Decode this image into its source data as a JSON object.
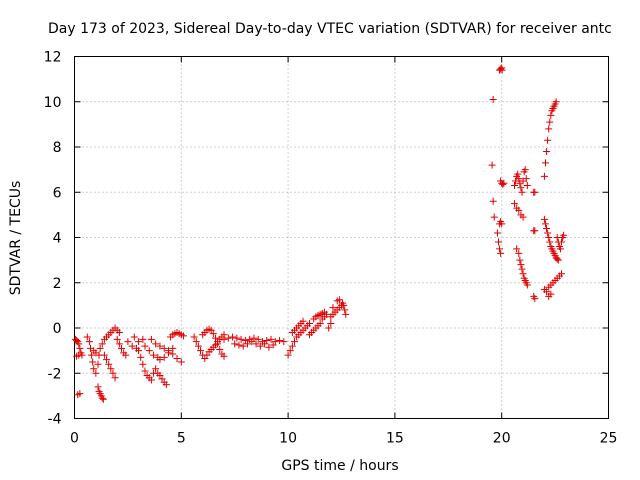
{
  "chart_data": {
    "type": "scatter",
    "title": "Day 173 of 2023, Sidereal Day-to-day VTEC variation (SDTVAR) for receiver antc",
    "xlabel": "GPS time / hours",
    "ylabel": "SDTVAR / TECUs",
    "xlim": [
      0,
      25
    ],
    "ylim": [
      -4,
      12
    ],
    "xticks": [
      0,
      5,
      10,
      15,
      20,
      25
    ],
    "yticks": [
      -4,
      -2,
      0,
      2,
      4,
      6,
      8,
      10,
      12
    ],
    "grid": true,
    "marker": "+",
    "color": "#ff0000",
    "series": [
      {
        "name": "SDTVAR",
        "points": [
          [
            0.05,
            -0.5
          ],
          [
            0.1,
            -0.55
          ],
          [
            0.15,
            -0.6
          ],
          [
            0.2,
            -0.7
          ],
          [
            0.25,
            -0.9
          ],
          [
            0.3,
            -1.1
          ],
          [
            0.35,
            -1.2
          ],
          [
            0.2,
            -1.2
          ],
          [
            0.1,
            -1.25
          ],
          [
            0.15,
            -2.95
          ],
          [
            0.25,
            -2.9
          ],
          [
            0.6,
            -0.4
          ],
          [
            0.7,
            -0.6
          ],
          [
            0.75,
            -0.9
          ],
          [
            0.8,
            -1.2
          ],
          [
            0.85,
            -1.5
          ],
          [
            0.9,
            -1.8
          ],
          [
            1.0,
            -2.0
          ],
          [
            1.1,
            -1.6
          ],
          [
            1.15,
            -1.2
          ],
          [
            1.2,
            -0.9
          ],
          [
            1.3,
            -0.7
          ],
          [
            1.4,
            -0.5
          ],
          [
            1.5,
            -0.4
          ],
          [
            1.6,
            -0.3
          ],
          [
            1.7,
            -0.2
          ],
          [
            1.8,
            -0.1
          ],
          [
            1.9,
            0.0
          ],
          [
            2.0,
            -0.1
          ],
          [
            2.1,
            -0.2
          ],
          [
            1.1,
            -2.6
          ],
          [
            1.15,
            -2.8
          ],
          [
            1.2,
            -2.9
          ],
          [
            1.25,
            -3.0
          ],
          [
            1.3,
            -3.1
          ],
          [
            1.35,
            -3.15
          ],
          [
            1.4,
            -1.2
          ],
          [
            1.5,
            -1.4
          ],
          [
            1.6,
            -1.6
          ],
          [
            1.7,
            -1.8
          ],
          [
            1.8,
            -2.0
          ],
          [
            1.9,
            -2.2
          ],
          [
            0.9,
            -1.0
          ],
          [
            1.0,
            -1.1
          ],
          [
            2.0,
            -0.5
          ],
          [
            2.1,
            -0.7
          ],
          [
            2.2,
            -0.9
          ],
          [
            2.3,
            -1.1
          ],
          [
            2.4,
            -1.2
          ],
          [
            2.5,
            -0.6
          ],
          [
            2.7,
            -0.8
          ],
          [
            2.9,
            -0.9
          ],
          [
            3.0,
            -1.0
          ],
          [
            3.1,
            -1.3
          ],
          [
            3.2,
            -1.6
          ],
          [
            3.3,
            -1.9
          ],
          [
            3.4,
            -2.1
          ],
          [
            3.5,
            -2.2
          ],
          [
            3.6,
            -2.3
          ],
          [
            3.7,
            -2.0
          ],
          [
            3.8,
            -1.8
          ],
          [
            3.9,
            -2.0
          ],
          [
            4.0,
            -2.1
          ],
          [
            4.1,
            -2.25
          ],
          [
            4.2,
            -2.4
          ],
          [
            4.3,
            -2.5
          ],
          [
            3.3,
            -0.8
          ],
          [
            3.5,
            -1.0
          ],
          [
            3.7,
            -1.2
          ],
          [
            3.9,
            -1.3
          ],
          [
            4.0,
            -1.4
          ],
          [
            4.2,
            -1.3
          ],
          [
            4.4,
            -1.1
          ],
          [
            4.6,
            -0.9
          ],
          [
            3.6,
            -0.5
          ],
          [
            3.8,
            -0.7
          ],
          [
            4.0,
            -0.8
          ],
          [
            4.2,
            -0.9
          ],
          [
            4.4,
            -1.0
          ],
          [
            4.6,
            -1.15
          ],
          [
            4.8,
            -1.35
          ],
          [
            5.0,
            -1.5
          ],
          [
            4.5,
            -0.4
          ],
          [
            4.6,
            -0.3
          ],
          [
            4.7,
            -0.25
          ],
          [
            4.8,
            -0.2
          ],
          [
            4.9,
            -0.25
          ],
          [
            5.0,
            -0.3
          ],
          [
            5.1,
            -0.35
          ],
          [
            3.2,
            -0.5
          ],
          [
            3.0,
            -0.6
          ],
          [
            2.8,
            -0.4
          ],
          [
            5.6,
            -0.4
          ],
          [
            5.7,
            -0.6
          ],
          [
            5.8,
            -0.8
          ],
          [
            5.9,
            -1.0
          ],
          [
            6.0,
            -1.2
          ],
          [
            6.1,
            -1.35
          ],
          [
            6.2,
            -1.2
          ],
          [
            6.3,
            -1.05
          ],
          [
            6.4,
            -0.95
          ],
          [
            6.5,
            -0.85
          ],
          [
            6.6,
            -0.75
          ],
          [
            6.7,
            -0.6
          ],
          [
            6.8,
            -0.5
          ],
          [
            6.9,
            -0.4
          ],
          [
            7.0,
            -0.3
          ],
          [
            6.0,
            -0.3
          ],
          [
            6.1,
            -0.2
          ],
          [
            6.2,
            -0.1
          ],
          [
            6.3,
            -0.05
          ],
          [
            6.4,
            -0.1
          ],
          [
            6.5,
            -0.25
          ],
          [
            6.6,
            -0.45
          ],
          [
            6.7,
            -0.7
          ],
          [
            6.8,
            -0.95
          ],
          [
            6.9,
            -1.15
          ],
          [
            7.0,
            -1.25
          ],
          [
            7.0,
            -0.5
          ],
          [
            7.2,
            -0.45
          ],
          [
            7.4,
            -0.4
          ],
          [
            7.6,
            -0.45
          ],
          [
            7.8,
            -0.5
          ],
          [
            8.0,
            -0.55
          ],
          [
            8.2,
            -0.5
          ],
          [
            8.4,
            -0.45
          ],
          [
            8.6,
            -0.5
          ],
          [
            8.8,
            -0.6
          ],
          [
            9.0,
            -0.55
          ],
          [
            9.2,
            -0.5
          ],
          [
            9.4,
            -0.6
          ],
          [
            9.6,
            -0.55
          ],
          [
            9.8,
            -0.6
          ],
          [
            7.5,
            -0.7
          ],
          [
            7.7,
            -0.75
          ],
          [
            7.9,
            -0.8
          ],
          [
            8.1,
            -0.7
          ],
          [
            8.3,
            -0.6
          ],
          [
            8.5,
            -0.7
          ],
          [
            8.7,
            -0.8
          ],
          [
            8.9,
            -0.7
          ],
          [
            9.1,
            -0.85
          ],
          [
            9.3,
            -0.75
          ],
          [
            10.0,
            -1.2
          ],
          [
            10.1,
            -1.0
          ],
          [
            10.2,
            -0.8
          ],
          [
            10.3,
            -0.6
          ],
          [
            10.4,
            -0.4
          ],
          [
            10.5,
            -0.3
          ],
          [
            10.6,
            -0.2
          ],
          [
            10.7,
            -0.1
          ],
          [
            10.8,
            0.0
          ],
          [
            10.9,
            0.1
          ],
          [
            11.0,
            0.2
          ],
          [
            10.2,
            -0.2
          ],
          [
            10.3,
            -0.1
          ],
          [
            10.4,
            0.0
          ],
          [
            10.5,
            0.1
          ],
          [
            10.6,
            0.2
          ],
          [
            10.7,
            0.3
          ],
          [
            11.0,
            -0.3
          ],
          [
            11.1,
            -0.2
          ],
          [
            11.2,
            -0.1
          ],
          [
            11.3,
            0.0
          ],
          [
            11.4,
            0.1
          ],
          [
            11.5,
            0.2
          ],
          [
            11.6,
            0.4
          ],
          [
            11.7,
            0.5
          ],
          [
            11.8,
            0.6
          ],
          [
            11.2,
            0.4
          ],
          [
            11.3,
            0.5
          ],
          [
            11.4,
            0.55
          ],
          [
            11.5,
            0.6
          ],
          [
            11.6,
            0.65
          ],
          [
            11.7,
            0.7
          ],
          [
            12.0,
            0.5
          ],
          [
            12.1,
            0.6
          ],
          [
            12.2,
            0.7
          ],
          [
            12.3,
            0.8
          ],
          [
            12.4,
            0.9
          ],
          [
            12.5,
            1.0
          ],
          [
            12.55,
            1.1
          ],
          [
            12.6,
            1.0
          ],
          [
            12.65,
            0.8
          ],
          [
            12.7,
            0.6
          ],
          [
            12.3,
            1.2
          ],
          [
            12.4,
            1.25
          ],
          [
            12.1,
            0.9
          ],
          [
            12.0,
            0.2
          ],
          [
            11.9,
            0.0
          ],
          [
            19.9,
            11.4
          ],
          [
            19.95,
            11.45
          ],
          [
            20.0,
            11.5
          ],
          [
            20.02,
            11.4
          ],
          [
            19.6,
            10.1
          ],
          [
            19.55,
            7.2
          ],
          [
            19.6,
            5.6
          ],
          [
            19.65,
            4.9
          ],
          [
            19.95,
            6.5
          ],
          [
            20.0,
            6.4
          ],
          [
            20.05,
            6.35
          ],
          [
            20.1,
            6.4
          ],
          [
            19.9,
            4.6
          ],
          [
            19.95,
            4.7
          ],
          [
            20.0,
            4.6
          ],
          [
            19.8,
            4.2
          ],
          [
            19.85,
            3.8
          ],
          [
            19.9,
            3.5
          ],
          [
            19.95,
            3.3
          ],
          [
            20.6,
            6.3
          ],
          [
            20.65,
            6.5
          ],
          [
            20.7,
            6.7
          ],
          [
            20.75,
            6.8
          ],
          [
            20.8,
            6.6
          ],
          [
            20.85,
            6.4
          ],
          [
            20.9,
            6.2
          ],
          [
            20.95,
            6.0
          ],
          [
            21.0,
            6.5
          ],
          [
            21.05,
            6.9
          ],
          [
            21.1,
            7.0
          ],
          [
            21.15,
            6.6
          ],
          [
            21.2,
            6.3
          ],
          [
            20.6,
            5.5
          ],
          [
            20.7,
            5.3
          ],
          [
            20.8,
            5.2
          ],
          [
            20.9,
            5.0
          ],
          [
            21.0,
            4.9
          ],
          [
            21.5,
            6.0
          ],
          [
            21.55,
            6.0
          ],
          [
            20.7,
            3.5
          ],
          [
            20.8,
            3.3
          ],
          [
            20.85,
            3.0
          ],
          [
            20.9,
            2.8
          ],
          [
            20.95,
            2.6
          ],
          [
            21.0,
            2.4
          ],
          [
            21.05,
            2.2
          ],
          [
            21.1,
            2.1
          ],
          [
            21.15,
            2.0
          ],
          [
            21.2,
            1.9
          ],
          [
            21.5,
            4.3
          ],
          [
            21.55,
            4.3
          ],
          [
            21.5,
            1.4
          ],
          [
            21.55,
            1.3
          ],
          [
            22.0,
            6.7
          ],
          [
            22.05,
            7.3
          ],
          [
            22.1,
            7.8
          ],
          [
            22.15,
            8.3
          ],
          [
            22.2,
            8.8
          ],
          [
            22.25,
            9.1
          ],
          [
            22.3,
            9.4
          ],
          [
            22.35,
            9.6
          ],
          [
            22.4,
            9.7
          ],
          [
            22.45,
            9.8
          ],
          [
            22.5,
            9.9
          ],
          [
            22.55,
            10.0
          ],
          [
            22.0,
            4.8
          ],
          [
            22.05,
            4.6
          ],
          [
            22.1,
            4.4
          ],
          [
            22.15,
            4.2
          ],
          [
            22.2,
            4.0
          ],
          [
            22.25,
            3.8
          ],
          [
            22.3,
            3.6
          ],
          [
            22.35,
            3.5
          ],
          [
            22.4,
            3.4
          ],
          [
            22.45,
            3.3
          ],
          [
            22.5,
            3.2
          ],
          [
            22.55,
            3.1
          ],
          [
            22.6,
            3.05
          ],
          [
            22.65,
            3.0
          ],
          [
            22.6,
            4.0
          ],
          [
            22.65,
            3.8
          ],
          [
            22.7,
            3.6
          ],
          [
            22.75,
            3.5
          ],
          [
            22.8,
            3.8
          ],
          [
            22.85,
            4.0
          ],
          [
            22.9,
            4.1
          ],
          [
            22.0,
            1.7
          ],
          [
            22.1,
            1.6
          ],
          [
            22.2,
            1.8
          ],
          [
            22.3,
            1.9
          ],
          [
            22.4,
            2.0
          ],
          [
            22.5,
            2.1
          ],
          [
            22.6,
            2.2
          ],
          [
            22.7,
            2.3
          ],
          [
            22.8,
            2.4
          ],
          [
            22.3,
            1.5
          ],
          [
            22.2,
            1.4
          ]
        ]
      }
    ]
  }
}
